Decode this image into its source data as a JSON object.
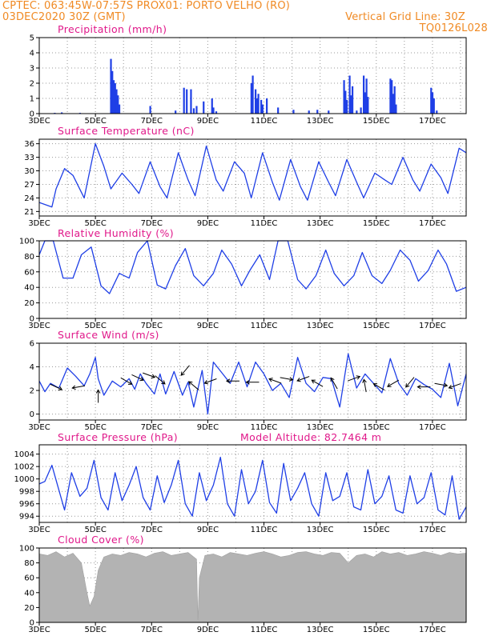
{
  "header": {
    "line1_left": "CPTEC:   063:45W-07:57S   PROX01: PORTO VELHO (RO)",
    "line2_left": "03DEC2020 30Z (GMT)",
    "line2_right": "Vertical Grid Line: 30Z",
    "line3_right": "TQ0126L028",
    "model_altitude": "Model Altitude: 82.7464  m"
  },
  "colors": {
    "header": "#f08a24",
    "title": "#e0188a",
    "line": "#1f3fe6",
    "cloud": "#b3b3b3",
    "grid": "#999999"
  },
  "x_tick_labels": [
    "3DEC",
    "5DEC",
    "7DEC",
    "9DEC",
    "11DEC",
    "13DEC",
    "15DEC",
    "17DEC"
  ],
  "x_tick_days": [
    0,
    2,
    4,
    6,
    8,
    10,
    12,
    14
  ],
  "x_range_days": [
    0,
    15.2
  ],
  "chart_data": [
    {
      "type": "bar",
      "title": "Precipitation (mm/h)",
      "ylim": [
        0,
        5
      ],
      "y_ticks": [
        0,
        1,
        2,
        3,
        4,
        5
      ],
      "x_ticks_every": 1,
      "x_labels": [
        "3DEC",
        "5DEC",
        "7DEC",
        "9DEC",
        "11DEC",
        "13DEC",
        "15DEC",
        "17DEC"
      ],
      "x_days": [
        0.55,
        0.8,
        1.45,
        2.55,
        2.6,
        2.65,
        2.7,
        2.75,
        2.8,
        2.85,
        3.95,
        4.85,
        5.15,
        5.25,
        5.4,
        5.5,
        5.6,
        5.85,
        6.15,
        6.2,
        6.3,
        7.55,
        7.6,
        7.7,
        7.75,
        7.8,
        7.9,
        7.95,
        8.1,
        8.5,
        9.05,
        9.6,
        9.9,
        10.3,
        10.85,
        10.9,
        10.95,
        11.05,
        11.1,
        11.15,
        11.3,
        11.45,
        11.55,
        11.6,
        11.65,
        11.7,
        12.5,
        12.55,
        12.6,
        12.65,
        12.7,
        13.95,
        14.0,
        14.05,
        14.15
      ],
      "values": [
        0.05,
        0.08,
        0.05,
        3.6,
        2.8,
        2.2,
        2.0,
        1.6,
        1.2,
        0.6,
        0.5,
        0.2,
        1.7,
        1.6,
        1.6,
        0.35,
        0.5,
        0.8,
        1.0,
        0.4,
        0.15,
        2.0,
        2.5,
        1.6,
        1.0,
        1.3,
        0.9,
        0.6,
        1.0,
        0.4,
        0.25,
        0.2,
        0.25,
        0.2,
        2.2,
        1.5,
        0.9,
        2.5,
        1.2,
        1.8,
        0.2,
        0.4,
        2.5,
        1.4,
        2.3,
        1.1,
        2.3,
        2.2,
        1.3,
        1.8,
        0.6,
        1.7,
        1.4,
        1.0,
        0.2
      ]
    },
    {
      "type": "line",
      "title": "Surface Temperature (nC)",
      "ylim": [
        20,
        37
      ],
      "y_ticks": [
        21,
        24,
        27,
        30,
        33,
        36
      ],
      "x": [
        0.0,
        0.45,
        0.6,
        0.9,
        1.2,
        1.6,
        2.0,
        2.3,
        2.55,
        2.95,
        3.3,
        3.55,
        3.95,
        4.3,
        4.55,
        4.95,
        5.3,
        5.55,
        5.95,
        6.3,
        6.55,
        6.95,
        7.3,
        7.55,
        7.95,
        8.3,
        8.55,
        8.95,
        9.3,
        9.55,
        9.95,
        10.3,
        10.55,
        10.95,
        11.3,
        11.55,
        11.95,
        12.3,
        12.55,
        12.95,
        13.3,
        13.55,
        13.95,
        14.3,
        14.55,
        14.95,
        15.2
      ],
      "values": [
        23.0,
        22.0,
        26.0,
        30.5,
        29.0,
        24.0,
        36.0,
        31.0,
        26.0,
        29.5,
        27.0,
        25.0,
        32.0,
        26.5,
        24.0,
        34.0,
        28.0,
        24.5,
        35.5,
        28.0,
        25.5,
        32.0,
        29.5,
        24.0,
        34.0,
        27.5,
        23.5,
        32.5,
        26.5,
        23.5,
        32.0,
        27.5,
        24.5,
        32.5,
        27.5,
        24.0,
        29.5,
        28.0,
        27.0,
        33.0,
        28.0,
        25.5,
        31.5,
        28.5,
        25.0,
        35.0,
        34.0
      ]
    },
    {
      "type": "line",
      "title": "Relative Humidity (%)",
      "ylim": [
        0,
        100
      ],
      "y_ticks": [
        0,
        20,
        40,
        60,
        80,
        100
      ],
      "x": [
        0.0,
        0.2,
        0.5,
        0.85,
        1.2,
        1.5,
        1.85,
        2.2,
        2.5,
        2.85,
        3.2,
        3.5,
        3.85,
        4.2,
        4.5,
        4.85,
        5.2,
        5.5,
        5.85,
        6.2,
        6.5,
        6.85,
        7.2,
        7.5,
        7.85,
        8.2,
        8.5,
        8.85,
        9.2,
        9.5,
        9.85,
        10.2,
        10.5,
        10.85,
        11.2,
        11.5,
        11.85,
        12.2,
        12.5,
        12.85,
        13.2,
        13.5,
        13.85,
        14.2,
        14.5,
        14.85,
        15.2
      ],
      "values": [
        82,
        100,
        100,
        52,
        52,
        82,
        92,
        42,
        32,
        58,
        52,
        85,
        100,
        43,
        38,
        68,
        90,
        55,
        42,
        58,
        88,
        70,
        42,
        62,
        82,
        50,
        100,
        100,
        50,
        38,
        55,
        88,
        58,
        42,
        55,
        85,
        55,
        45,
        62,
        88,
        75,
        48,
        62,
        88,
        70,
        35,
        40
      ]
    },
    {
      "type": "line",
      "title": "Surface Wind (m/s)",
      "ylim": [
        -0.5,
        6
      ],
      "y_ticks": [
        0,
        2,
        4,
        6
      ],
      "x": [
        0.0,
        0.2,
        0.4,
        0.7,
        1.0,
        1.3,
        1.6,
        1.8,
        2.0,
        2.1,
        2.3,
        2.6,
        2.9,
        3.2,
        3.4,
        3.6,
        3.8,
        4.1,
        4.3,
        4.5,
        4.8,
        5.1,
        5.3,
        5.5,
        5.8,
        6.0,
        6.2,
        6.5,
        6.8,
        7.1,
        7.4,
        7.7,
        8.0,
        8.3,
        8.6,
        8.9,
        9.2,
        9.5,
        9.8,
        10.1,
        10.4,
        10.7,
        11.0,
        11.3,
        11.6,
        11.9,
        12.2,
        12.5,
        12.8,
        13.1,
        13.4,
        13.7,
        14.0,
        14.3,
        14.6,
        14.9,
        15.2
      ],
      "values": [
        2.8,
        1.9,
        2.6,
        2.2,
        3.9,
        3.2,
        2.4,
        3.4,
        4.8,
        3.0,
        1.6,
        2.8,
        2.3,
        3.0,
        2.1,
        3.4,
        2.6,
        1.7,
        3.4,
        1.7,
        3.6,
        1.6,
        2.7,
        0.6,
        3.7,
        0.0,
        4.4,
        3.5,
        2.6,
        4.4,
        2.3,
        4.4,
        3.4,
        2.0,
        2.6,
        1.4,
        4.8,
        2.6,
        1.9,
        3.1,
        3.0,
        0.6,
        5.1,
        2.2,
        3.4,
        2.6,
        1.8,
        4.7,
        2.6,
        1.6,
        3.0,
        2.5,
        2.1,
        1.4,
        4.3,
        0.7,
        3.4
      ]
    },
    {
      "type": "line",
      "title": "Surface Pressure (hPa)",
      "ylim": [
        993,
        1005.5
      ],
      "y_ticks": [
        994,
        996,
        998,
        1000,
        1002,
        1004
      ],
      "x": [
        0.0,
        0.2,
        0.45,
        0.65,
        0.9,
        1.15,
        1.45,
        1.7,
        1.95,
        2.2,
        2.45,
        2.7,
        2.95,
        3.2,
        3.45,
        3.7,
        3.95,
        4.2,
        4.45,
        4.7,
        4.95,
        5.2,
        5.45,
        5.7,
        5.95,
        6.2,
        6.45,
        6.7,
        6.95,
        7.2,
        7.45,
        7.7,
        7.95,
        8.2,
        8.45,
        8.7,
        8.95,
        9.2,
        9.45,
        9.7,
        9.95,
        10.2,
        10.45,
        10.7,
        10.95,
        11.2,
        11.45,
        11.7,
        11.95,
        12.2,
        12.45,
        12.7,
        12.95,
        13.2,
        13.45,
        13.7,
        13.95,
        14.2,
        14.45,
        14.7,
        14.95,
        15.2
      ],
      "values": [
        999.2,
        999.6,
        1002.2,
        999.0,
        995.0,
        1001.0,
        997.2,
        998.5,
        1003.0,
        997.0,
        995.0,
        1001.0,
        996.5,
        999.0,
        1002.0,
        997.0,
        995.0,
        1000.5,
        996.2,
        999.0,
        1003.0,
        996.0,
        994.0,
        1001.0,
        996.5,
        999.0,
        1003.5,
        996.0,
        994.0,
        1001.5,
        996.0,
        998.0,
        1003.0,
        996.2,
        994.5,
        1002.5,
        996.5,
        998.5,
        1001.0,
        996.0,
        994.0,
        1001.0,
        996.5,
        997.2,
        1001.0,
        995.5,
        995.0,
        1001.5,
        996.0,
        997.2,
        1000.5,
        995.0,
        994.5,
        1000.5,
        996.0,
        997.0,
        1001.0,
        995.0,
        994.2,
        1000.5,
        993.5,
        995.5
      ]
    },
    {
      "type": "area",
      "title": "Cloud Cover (%)",
      "ylim": [
        0,
        100
      ],
      "y_ticks": [
        0,
        20,
        40,
        60,
        80,
        100
      ],
      "x": [
        0.0,
        0.3,
        0.6,
        0.9,
        1.2,
        1.5,
        1.6,
        1.7,
        1.8,
        1.95,
        2.1,
        2.3,
        2.6,
        2.9,
        3.2,
        3.5,
        3.8,
        4.1,
        4.4,
        4.7,
        5.0,
        5.3,
        5.6,
        5.65,
        5.7,
        5.9,
        6.2,
        6.5,
        6.8,
        7.1,
        7.4,
        7.7,
        8.0,
        8.3,
        8.6,
        8.9,
        9.2,
        9.5,
        9.8,
        10.1,
        10.4,
        10.7,
        11.0,
        11.3,
        11.6,
        11.9,
        12.2,
        12.5,
        12.8,
        13.1,
        13.4,
        13.7,
        14.0,
        14.3,
        14.6,
        14.9,
        15.2
      ],
      "values": [
        92,
        90,
        95,
        88,
        93,
        80,
        60,
        40,
        22,
        35,
        70,
        88,
        92,
        90,
        94,
        92,
        88,
        93,
        95,
        90,
        92,
        94,
        85,
        3,
        60,
        90,
        92,
        88,
        94,
        92,
        90,
        93,
        95,
        92,
        88,
        90,
        94,
        95,
        92,
        90,
        94,
        93,
        80,
        90,
        92,
        88,
        95,
        92,
        94,
        90,
        92,
        95,
        93,
        90,
        94,
        92,
        93
      ]
    }
  ]
}
